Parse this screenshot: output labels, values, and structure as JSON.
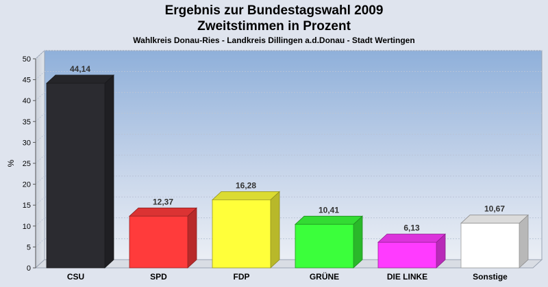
{
  "chart_data": {
    "type": "bar",
    "title_line1": "Ergebnis zur Bundestagswahl 2009",
    "title_line2": "Zweitstimmen in Prozent",
    "subtitle": "Wahlkreis Donau-Ries - Landkreis Dillingen a.d.Donau - Stadt Wertingen",
    "ylabel": "%",
    "ylim": [
      0,
      50
    ],
    "yticks": [
      0,
      5,
      10,
      15,
      20,
      25,
      30,
      35,
      40,
      45,
      50
    ],
    "categories": [
      "CSU",
      "SPD",
      "FDP",
      "GRÜNE",
      "DIE LINKE",
      "Sonstige"
    ],
    "values": [
      44.14,
      12.37,
      16.28,
      10.41,
      6.13,
      10.67
    ],
    "value_labels": [
      "44,14",
      "12,37",
      "16,28",
      "10,41",
      "6,13",
      "10,67"
    ],
    "colors": [
      "#2b2b30",
      "#ff3b3b",
      "#ffff3a",
      "#3bff3b",
      "#ff3bff",
      "#ffffff"
    ],
    "grid": true,
    "legend": "none"
  }
}
